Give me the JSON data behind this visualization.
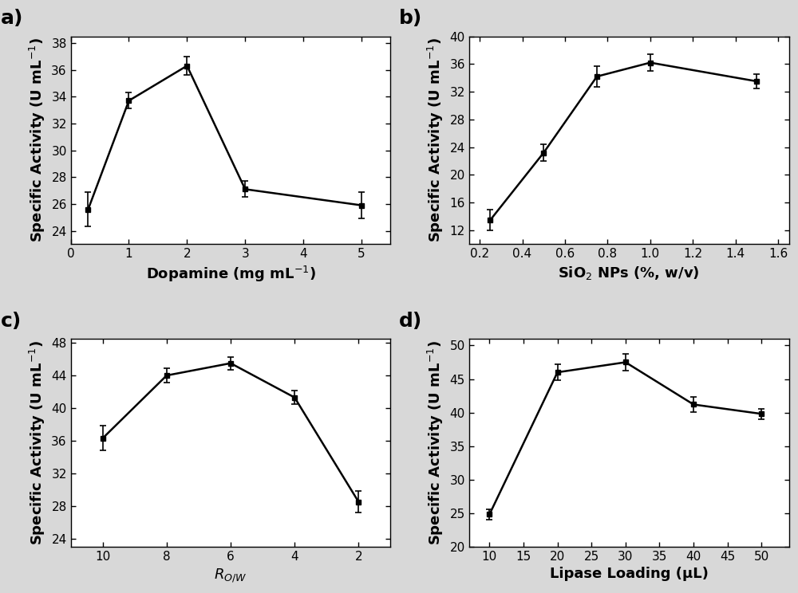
{
  "panel_a": {
    "x": [
      0.3,
      1,
      2,
      3,
      5
    ],
    "y": [
      25.6,
      33.7,
      36.3,
      27.1,
      25.9
    ],
    "yerr": [
      1.3,
      0.6,
      0.7,
      0.6,
      1.0
    ],
    "xlabel": "Dopamine (mg mL$^{-1}$)",
    "ylabel": "Specific Activity (U mL$^{-1}$)",
    "xlim": [
      0.1,
      5.5
    ],
    "ylim": [
      23.0,
      38.5
    ],
    "yticks": [
      24,
      26,
      28,
      30,
      32,
      34,
      36,
      38
    ],
    "xticks": [
      0,
      1,
      2,
      3,
      4,
      5
    ],
    "label": "a)"
  },
  "panel_b": {
    "x": [
      0.25,
      0.5,
      0.75,
      1.0,
      1.5
    ],
    "y": [
      13.5,
      23.2,
      34.2,
      36.2,
      33.5
    ],
    "yerr": [
      1.5,
      1.2,
      1.5,
      1.2,
      1.0
    ],
    "xlabel": "SiO$_2$ NPs (%, w/v)",
    "ylabel": "Specific Activity (U mL$^{-1}$)",
    "xlim": [
      0.15,
      1.65
    ],
    "ylim": [
      10,
      40
    ],
    "yticks": [
      12,
      16,
      20,
      24,
      28,
      32,
      36,
      40
    ],
    "xticks": [
      0.2,
      0.4,
      0.6,
      0.8,
      1.0,
      1.2,
      1.4,
      1.6
    ],
    "label": "b)"
  },
  "panel_c": {
    "x": [
      10,
      8,
      6,
      4,
      2
    ],
    "y": [
      36.3,
      44.0,
      45.5,
      41.3,
      28.5
    ],
    "yerr": [
      1.5,
      0.9,
      0.8,
      0.8,
      1.3
    ],
    "xlabel": "$\\mathit{R}$$_{O/W}$",
    "ylabel": "Specific Activity (U mL$^{-1}$)",
    "xlim": [
      11,
      1
    ],
    "ylim": [
      23.0,
      48.5
    ],
    "yticks": [
      24,
      28,
      32,
      36,
      40,
      44,
      48
    ],
    "xticks": [
      10,
      8,
      6,
      4,
      2
    ],
    "label": "c)"
  },
  "panel_d": {
    "x": [
      10,
      20,
      30,
      40,
      50
    ],
    "y": [
      24.8,
      46.0,
      47.5,
      41.2,
      39.8
    ],
    "yerr": [
      0.8,
      1.2,
      1.3,
      1.1,
      0.8
    ],
    "xlabel": "Lipase Loading (μL)",
    "ylabel": "Specific Activity (U mL$^{-1}$)",
    "xlim": [
      7,
      54
    ],
    "ylim": [
      20,
      51
    ],
    "yticks": [
      20,
      25,
      30,
      35,
      40,
      45,
      50
    ],
    "xticks": [
      10,
      15,
      20,
      25,
      30,
      35,
      40,
      45,
      50
    ],
    "label": "d)"
  },
  "line_color": "#000000",
  "marker_color": "#000000",
  "bg_color": "#ffffff",
  "fig_bg_color": "#d8d8d8",
  "marker": "s",
  "markersize": 5,
  "linewidth": 1.8,
  "capsize": 3,
  "elinewidth": 1.2,
  "label_fontsize": 13,
  "tick_fontsize": 11,
  "panel_label_fontsize": 18
}
